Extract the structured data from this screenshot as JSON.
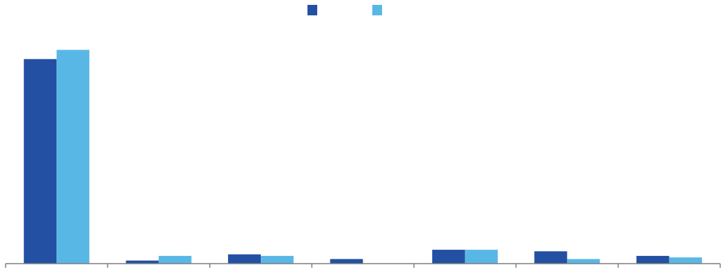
{
  "chart_data": {
    "type": "bar",
    "title": "",
    "xlabel": "",
    "ylabel": "",
    "categories": [
      "",
      "",
      "",
      "",
      "",
      "",
      ""
    ],
    "series": [
      {
        "color": "#2350A3",
        "values": [
          265,
          4,
          12,
          6,
          18,
          16,
          10
        ]
      },
      {
        "color": "#59B7E6",
        "values": [
          277,
          10,
          10,
          0,
          18,
          6,
          8
        ]
      }
    ],
    "ylim": [
      0,
      300
    ],
    "grid": false,
    "legend": "top-center",
    "axis_color": "#7F7F7F"
  }
}
